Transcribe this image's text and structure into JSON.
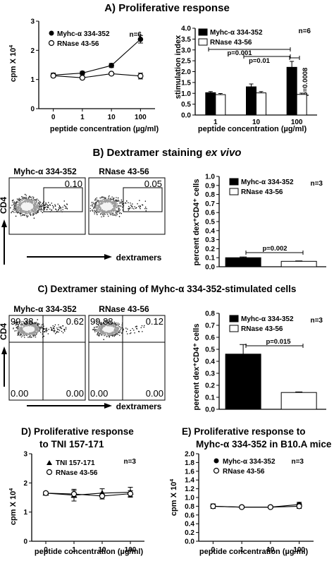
{
  "panelA": {
    "heading": "A) Proliferative response",
    "line": {
      "type": "line",
      "ylabel": "cpm X 10",
      "ylabel_sup": "4",
      "xlabel": "peptide concentration (µg/ml)",
      "categories": [
        "0",
        "1",
        "10",
        "100"
      ],
      "ylim": [
        0,
        3
      ],
      "yticks": [
        "0",
        "1",
        "2",
        "3"
      ],
      "n_label": "n=6",
      "series": [
        {
          "name": "Myhc-α 334-352",
          "values": [
            1.15,
            1.22,
            1.48,
            2.38
          ],
          "errors": [
            0.07,
            0.06,
            0.07,
            0.13
          ],
          "marker": "filled-circle"
        },
        {
          "name": "RNase 43-56",
          "values": [
            1.13,
            1.06,
            1.2,
            1.12
          ],
          "errors": [
            0.05,
            0.05,
            0.05,
            0.1
          ],
          "marker": "open-circle"
        }
      ]
    },
    "bar": {
      "type": "bar",
      "ylabel": "stimulation index",
      "xlabel": "peptide concentration (µg/ml)",
      "categories": [
        "1",
        "10",
        "100"
      ],
      "ylim": [
        0,
        4
      ],
      "yticks": [
        "0.0",
        "0.5",
        "1.0",
        "1.5",
        "2.0",
        "2.5",
        "3.0",
        "3.5",
        "4.0"
      ],
      "n_label": "n=6",
      "series": [
        {
          "name": "Myhc-α 334-352",
          "values": [
            1.03,
            1.3,
            2.2
          ],
          "errors": [
            0.05,
            0.13,
            0.27
          ],
          "fill": "#000000"
        },
        {
          "name": "RNase 43-56",
          "values": [
            0.94,
            1.02,
            0.95
          ],
          "errors": [
            0.05,
            0.06,
            0.06
          ],
          "fill": "#ffffff"
        }
      ],
      "pvalues": [
        "p=0.001",
        "p=0.01",
        "p=0.0008"
      ]
    }
  },
  "panelB": {
    "heading_prefix": "B) Dextramer staining ",
    "heading_italic": "ex vivo",
    "flow": {
      "plot1_title": "Myhc-α 334-352",
      "plot2_title": "RNase 43-56",
      "plot1_gate": "0.10",
      "plot2_gate": "0.05",
      "y_axis": "CD4",
      "x_axis": "dextramers"
    },
    "bar": {
      "type": "bar",
      "ylabel": "percent dex⁺CD4⁺ cells",
      "ylim": [
        0,
        1
      ],
      "yticks": [
        "0.0",
        "0.1",
        "0.2",
        "0.3",
        "0.4",
        "0.5",
        "0.6",
        "0.7",
        "0.8",
        "0.9",
        "1.0"
      ],
      "n_label": "n=3",
      "series": [
        {
          "name": "Myhc-α 334-352",
          "value": 0.1,
          "error": 0.008,
          "fill": "#000000"
        },
        {
          "name": "RNase 43-56",
          "value": 0.06,
          "error": 0.004,
          "fill": "#ffffff"
        }
      ],
      "pvalue": "p=0.002"
    }
  },
  "panelC": {
    "heading": "C) Dextramer staining of Myhc-α 334-352-stimulated cells",
    "flow": {
      "plot1_title": "Myhc-α 334-352",
      "plot2_title": "RNase 43-56",
      "plot1_quadrants": [
        "99.38",
        "0.62",
        "0.00",
        "0.00"
      ],
      "plot2_quadrants": [
        "99.88",
        "0.12",
        "0.00",
        "0.00"
      ],
      "y_axis": "CD4",
      "x_axis": "dextramers"
    },
    "bar": {
      "type": "bar",
      "ylabel": "percent dex⁺CD4⁺ cells",
      "ylim": [
        0,
        0.8
      ],
      "yticks": [
        "0.0",
        "0.1",
        "0.2",
        "0.3",
        "0.4",
        "0.5",
        "0.6",
        "0.7",
        "0.8"
      ],
      "n_label": "n=3",
      "series": [
        {
          "name": "Myhc-α 334-352",
          "value": 0.46,
          "error": 0.08,
          "fill": "#000000"
        },
        {
          "name": "RNase 43-56",
          "value": 0.14,
          "error": 0.005,
          "fill": "#ffffff"
        }
      ],
      "pvalue": "p=0.015"
    }
  },
  "panelD": {
    "heading_line1": "D) Proliferative response",
    "heading_line2": "to TNI 157-171",
    "chart": {
      "type": "line",
      "ylabel": "cpm X 10",
      "ylabel_sup": "4",
      "xlabel": "peptide concentration (µg/ml)",
      "categories": [
        "0",
        "1",
        "10",
        "100"
      ],
      "ylim": [
        0,
        3
      ],
      "yticks": [
        "0",
        "1",
        "2",
        "3"
      ],
      "n_label": "n=3",
      "series": [
        {
          "name": "TNI 157-171",
          "values": [
            1.65,
            1.58,
            1.65,
            1.68
          ],
          "errors": [
            0.05,
            0.2,
            0.15,
            0.17
          ],
          "marker": "filled-triangle"
        },
        {
          "name": "RNase 43-56",
          "values": [
            1.65,
            1.62,
            1.55,
            1.63
          ],
          "errors": [
            0.05,
            0.12,
            0.1,
            0.1
          ],
          "marker": "open-circle"
        }
      ]
    }
  },
  "panelE": {
    "heading_line1": "E) Proliferative response to",
    "heading_line2": "Myhc-α 334-352 in B10.A mice",
    "chart": {
      "type": "line",
      "ylabel": "cpm X 10",
      "ylabel_sup": "4",
      "xlabel": "peptide concentration (µg/ml)",
      "categories": [
        "0",
        "1",
        "10",
        "100"
      ],
      "ylim": [
        0,
        2
      ],
      "yticks": [
        "0.0",
        "0.2",
        "0.4",
        "0.6",
        "0.8",
        "1.0",
        "1.2",
        "1.4",
        "1.6",
        "1.8",
        "2.0"
      ],
      "n_label": "n=3",
      "series": [
        {
          "name": "Myhc-α 334-352",
          "values": [
            0.8,
            0.78,
            0.78,
            0.84
          ],
          "errors": [
            0.05,
            0.03,
            0.03,
            0.05
          ],
          "marker": "filled-circle"
        },
        {
          "name": "RNase 43-56",
          "values": [
            0.8,
            0.78,
            0.78,
            0.8
          ],
          "errors": [
            0.05,
            0.03,
            0.03,
            0.05
          ],
          "marker": "open-circle"
        }
      ]
    }
  }
}
